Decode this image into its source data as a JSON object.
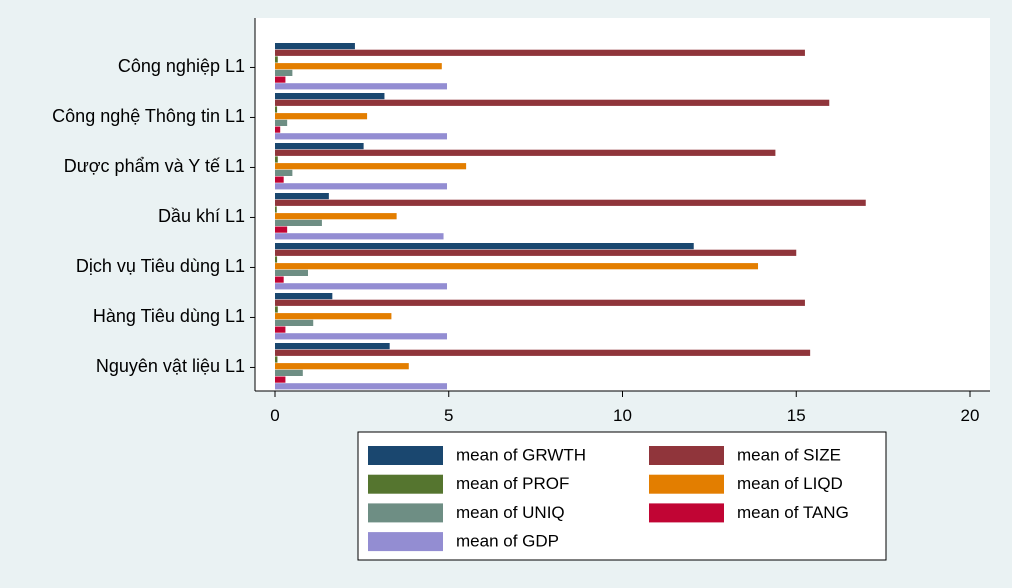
{
  "chart_data": {
    "type": "bar",
    "orientation": "horizontal",
    "categories": [
      "Công nghiệp L1",
      "Công nghệ Thông tin L1",
      "Dược phẩm và Y tế L1",
      "Dầu khí L1",
      "Dịch vụ Tiêu dùng L1",
      "Hàng Tiêu dùng L1",
      "Nguyên vật liệu L1"
    ],
    "series": [
      {
        "name": "mean of GRWTH",
        "color": "#1a476f",
        "values": [
          2.3,
          3.15,
          2.55,
          1.55,
          12.05,
          1.65,
          3.3
        ]
      },
      {
        "name": "mean of SIZE",
        "color": "#90353b",
        "values": [
          15.25,
          15.95,
          14.4,
          17.0,
          15.0,
          15.25,
          15.4
        ]
      },
      {
        "name": "mean of PROF",
        "color": "#55752f",
        "values": [
          0.08,
          0.06,
          0.08,
          0.05,
          0.06,
          0.08,
          0.07
        ]
      },
      {
        "name": "mean of LIQD",
        "color": "#e37e00",
        "values": [
          4.8,
          2.65,
          5.5,
          3.5,
          13.9,
          3.35,
          3.85
        ]
      },
      {
        "name": "mean of UNIQ",
        "color": "#6e8e84",
        "values": [
          0.5,
          0.35,
          0.5,
          1.35,
          0.95,
          1.1,
          0.8
        ]
      },
      {
        "name": "mean of TANG",
        "color": "#c10534",
        "values": [
          0.3,
          0.15,
          0.25,
          0.35,
          0.25,
          0.3,
          0.3
        ]
      },
      {
        "name": "mean of GDP",
        "color": "#938dd2",
        "values": [
          4.95,
          4.95,
          4.95,
          4.85,
          4.95,
          4.95,
          4.95
        ]
      }
    ],
    "legend_order": [
      0,
      1,
      2,
      3,
      4,
      5,
      6
    ],
    "xlim": [
      0,
      20
    ],
    "xticks": [
      0,
      5,
      10,
      15,
      20
    ],
    "xtick_labels": [
      "0",
      "5",
      "10",
      "15",
      "20"
    ],
    "title": "",
    "xlabel": "",
    "ylabel": "",
    "grid": false,
    "legend_position": "bottom",
    "legend_columns": 2
  },
  "colors": {
    "background": "#eaf2f3",
    "plot_background": "#ffffff",
    "axis": "#000000"
  }
}
